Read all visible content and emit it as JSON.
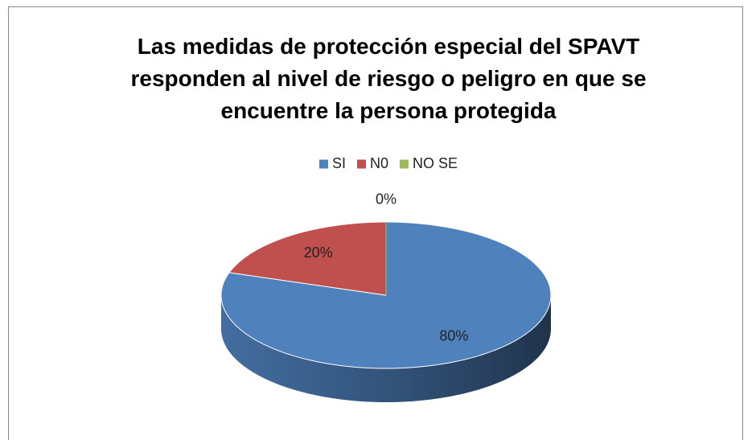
{
  "chart_data": {
    "type": "pie",
    "title": "Las medidas de protección especial  del SPAVT responden al nivel de riesgo o peligro en que se encuentre la persona protegida",
    "categories": [
      "SI",
      "N0",
      "NO SE"
    ],
    "values": [
      80,
      20,
      0
    ],
    "value_labels": [
      "80%",
      "20%",
      "0%"
    ],
    "colors": [
      "#4f81bd",
      "#c0504d",
      "#9bbb59"
    ],
    "legend": "top"
  }
}
